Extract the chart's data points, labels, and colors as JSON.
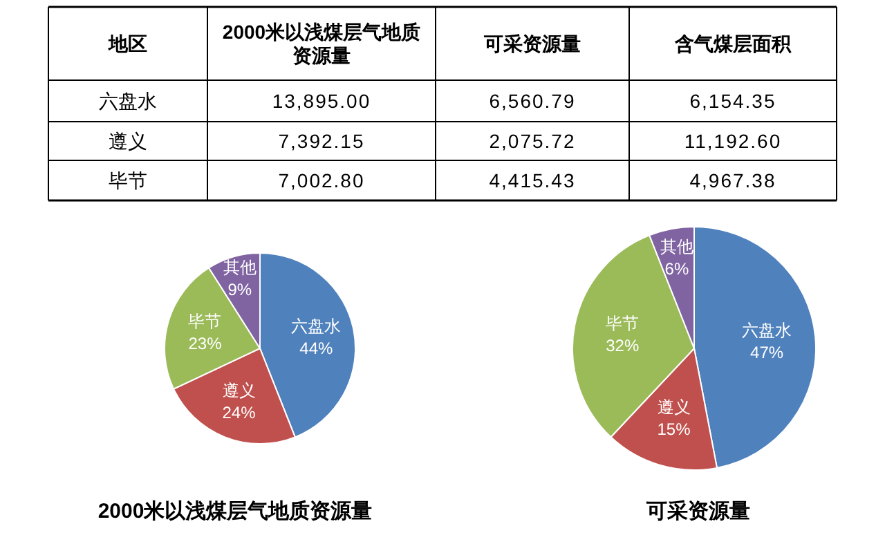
{
  "chart_data": [
    {
      "type": "heatmap",
      "ylabel": "地区",
      "categories": [
        "2000米以浅煤层气地质资源量",
        "可采资源量",
        "含气煤层面积"
      ],
      "y_categories": [
        "六盘水",
        "遵义",
        "毕节"
      ],
      "cells": [
        [
          13895.0,
          6560.79,
          6154.35
        ],
        [
          7392.15,
          2075.72,
          11192.6
        ],
        [
          7002.8,
          4415.43,
          4967.38
        ]
      ],
      "cell_labels": [
        [
          "13,895.00",
          "6,560.79",
          "6,154.35"
        ],
        [
          "7,392.15",
          "2,075.72",
          "11,192.60"
        ],
        [
          "7,002.80",
          "4,415.43",
          "4,967.38"
        ]
      ]
    },
    {
      "type": "pie",
      "title": "2000米以浅煤层气地质资源量",
      "categories": [
        "六盘水",
        "遵义",
        "毕节",
        "其他"
      ],
      "values": [
        44,
        24,
        23,
        9
      ],
      "value_labels": [
        "44%",
        "24%",
        "23%",
        "9%"
      ],
      "colors": [
        "#4f81bd",
        "#c0504d",
        "#9bbb59",
        "#8064a2"
      ]
    },
    {
      "type": "pie",
      "title": "可采资源量",
      "categories": [
        "六盘水",
        "遵义",
        "毕节",
        "其他"
      ],
      "values": [
        47,
        15,
        32,
        6
      ],
      "value_labels": [
        "47%",
        "15%",
        "32%",
        "6%"
      ],
      "colors": [
        "#4f81bd",
        "#c0504d",
        "#9bbb59",
        "#8064a2"
      ]
    }
  ]
}
